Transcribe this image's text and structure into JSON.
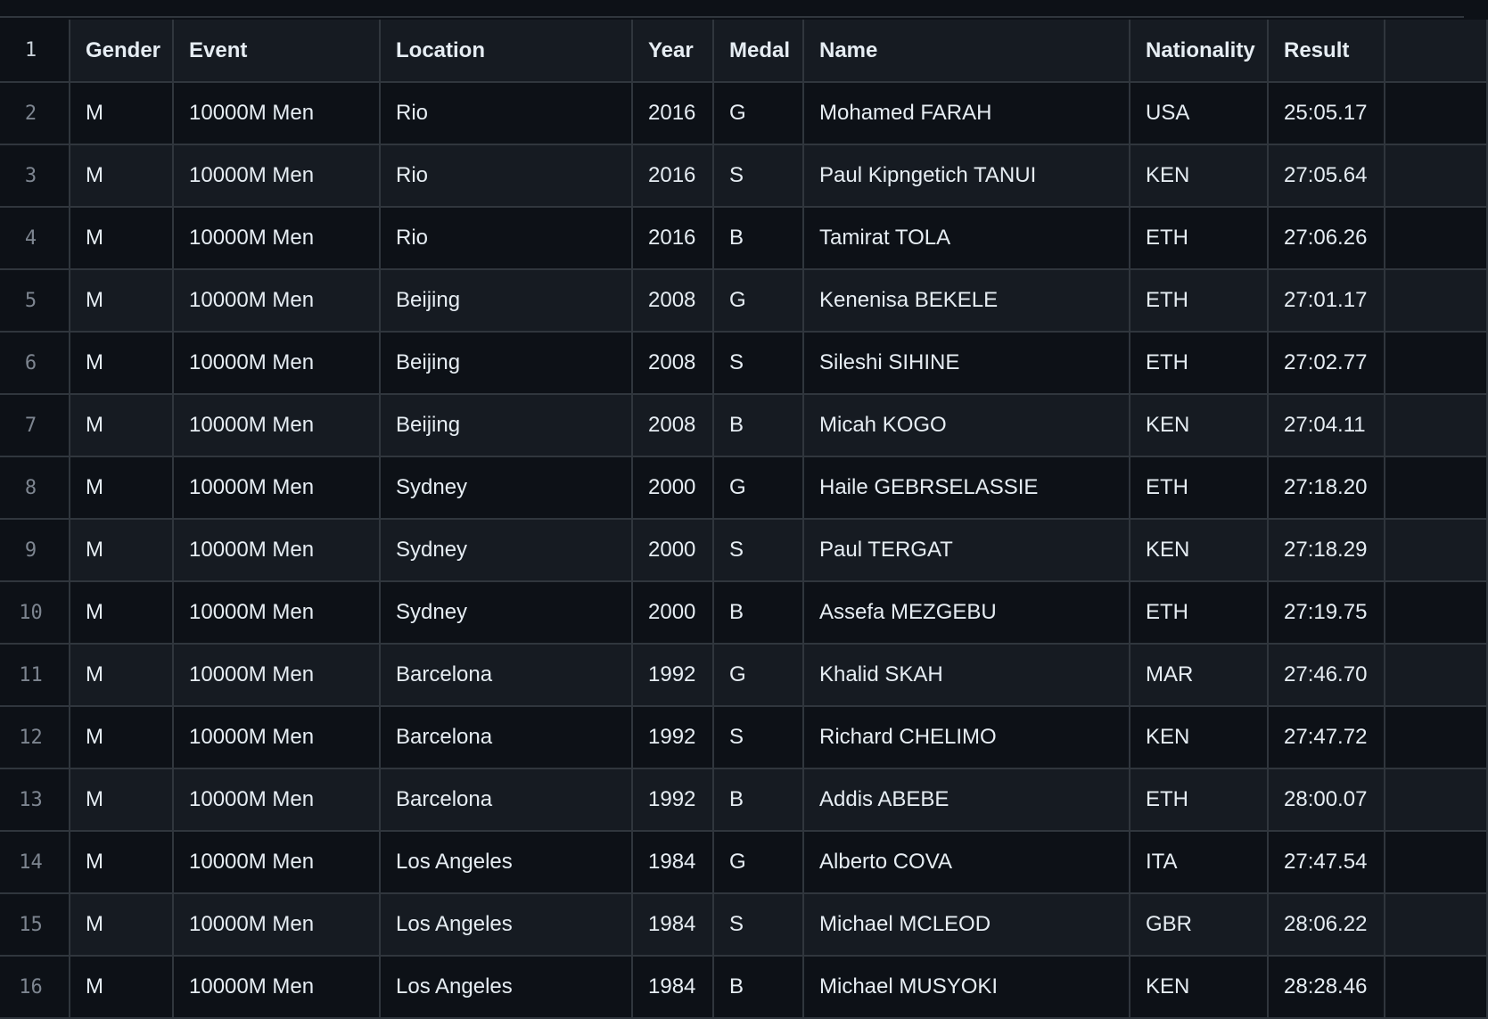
{
  "table": {
    "columns": [
      "Gender",
      "Event",
      "Location",
      "Year",
      "Medal",
      "Name",
      "Nationality",
      "Result"
    ],
    "rows": [
      [
        "M",
        "10000M Men",
        "Rio",
        "2016",
        "G",
        "Mohamed FARAH",
        "USA",
        "25:05.17"
      ],
      [
        "M",
        "10000M Men",
        "Rio",
        "2016",
        "S",
        "Paul Kipngetich TANUI",
        "KEN",
        "27:05.64"
      ],
      [
        "M",
        "10000M Men",
        "Rio",
        "2016",
        "B",
        "Tamirat TOLA",
        "ETH",
        "27:06.26"
      ],
      [
        "M",
        "10000M Men",
        "Beijing",
        "2008",
        "G",
        "Kenenisa BEKELE",
        "ETH",
        "27:01.17"
      ],
      [
        "M",
        "10000M Men",
        "Beijing",
        "2008",
        "S",
        "Sileshi SIHINE",
        "ETH",
        "27:02.77"
      ],
      [
        "M",
        "10000M Men",
        "Beijing",
        "2008",
        "B",
        "Micah KOGO",
        "KEN",
        "27:04.11"
      ],
      [
        "M",
        "10000M Men",
        "Sydney",
        "2000",
        "G",
        "Haile GEBRSELASSIE",
        "ETH",
        "27:18.20"
      ],
      [
        "M",
        "10000M Men",
        "Sydney",
        "2000",
        "S",
        "Paul TERGAT",
        "KEN",
        "27:18.29"
      ],
      [
        "M",
        "10000M Men",
        "Sydney",
        "2000",
        "B",
        "Assefa MEZGEBU",
        "ETH",
        "27:19.75"
      ],
      [
        "M",
        "10000M Men",
        "Barcelona",
        "1992",
        "G",
        "Khalid SKAH",
        "MAR",
        "27:46.70"
      ],
      [
        "M",
        "10000M Men",
        "Barcelona",
        "1992",
        "S",
        "Richard CHELIMO",
        "KEN",
        "27:47.72"
      ],
      [
        "M",
        "10000M Men",
        "Barcelona",
        "1992",
        "B",
        "Addis ABEBE",
        "ETH",
        "28:00.07"
      ],
      [
        "M",
        "10000M Men",
        "Los Angeles",
        "1984",
        "G",
        "Alberto COVA",
        "ITA",
        "27:47.54"
      ],
      [
        "M",
        "10000M Men",
        "Los Angeles",
        "1984",
        "S",
        "Michael MCLEOD",
        "GBR",
        "28:06.22"
      ],
      [
        "M",
        "10000M Men",
        "Los Angeles",
        "1984",
        "B",
        "Michael MUSYOKI",
        "KEN",
        "28:28.46"
      ]
    ],
    "line_numbers": [
      "1",
      "2",
      "3",
      "4",
      "5",
      "6",
      "7",
      "8",
      "9",
      "10",
      "11",
      "12",
      "13",
      "14",
      "15",
      "16"
    ]
  }
}
